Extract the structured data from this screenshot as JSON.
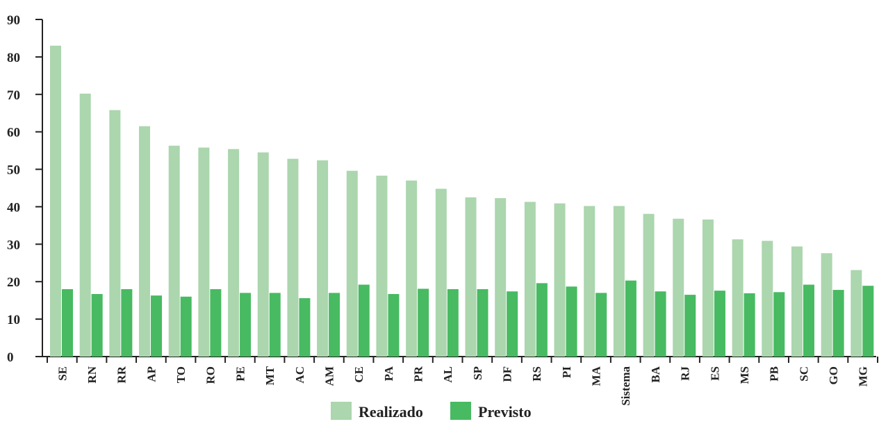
{
  "chart_data": {
    "type": "bar",
    "categories": [
      "SE",
      "RN",
      "RR",
      "AP",
      "TO",
      "RO",
      "PE",
      "MT",
      "AC",
      "AM",
      "CE",
      "PA",
      "PR",
      "AL",
      "SP",
      "DF",
      "RS",
      "PI",
      "MA",
      "Sistema",
      "BA",
      "RJ",
      "ES",
      "MS",
      "PB",
      "SC",
      "GO",
      "MG"
    ],
    "series": [
      {
        "name": "Realizado",
        "color": "#abd6ae",
        "values": [
          83.0,
          70.2,
          65.8,
          61.5,
          56.3,
          55.8,
          55.4,
          54.5,
          52.8,
          52.4,
          49.6,
          48.3,
          47.0,
          44.8,
          42.5,
          42.3,
          41.3,
          40.9,
          40.2,
          40.2,
          38.1,
          36.8,
          36.6,
          31.3,
          30.9,
          29.4,
          27.6,
          23.1
        ]
      },
      {
        "name": "Previsto",
        "color": "#48ba62",
        "values": [
          18.0,
          16.7,
          18.0,
          16.3,
          16.0,
          18.0,
          17.0,
          17.0,
          15.6,
          17.0,
          19.2,
          16.7,
          18.1,
          18.0,
          18.0,
          17.4,
          19.6,
          18.7,
          17.0,
          20.3,
          17.4,
          16.5,
          17.6,
          16.9,
          17.2,
          19.2,
          17.8,
          18.9
        ]
      }
    ],
    "title": "",
    "xlabel": "",
    "ylabel": "",
    "ylim": [
      0,
      90
    ],
    "yticks": [
      0,
      10,
      20,
      30,
      40,
      50,
      60,
      70,
      80,
      90
    ],
    "grid": false,
    "legend_position": "bottom-center"
  }
}
